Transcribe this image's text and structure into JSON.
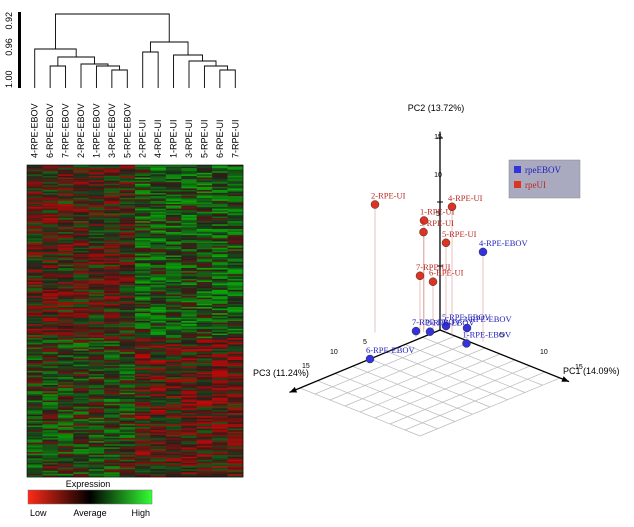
{
  "chart_data": [
    {
      "type": "heatmap",
      "title": "",
      "scale_ticks": [
        "0.92",
        "0.96",
        "1.00"
      ],
      "columns": [
        "4-RPE-EBOV",
        "6-RPE-EBOV",
        "7-RPE-EBOV",
        "2-RPE-EBOV",
        "1-RPE-EBOV",
        "3-RPE-EBOV",
        "5-RPE-EBOV",
        "2-RPE-UI",
        "4-RPE-UI",
        "1-RPE-UI",
        "3-RPE-UI",
        "5-RPE-UI",
        "6-RPE-UI",
        "7-RPE-UI"
      ],
      "column_groups": [
        "EBOV",
        "EBOV",
        "EBOV",
        "EBOV",
        "EBOV",
        "EBOV",
        "EBOV",
        "UI",
        "UI",
        "UI",
        "UI",
        "UI",
        "UI",
        "UI"
      ],
      "row_count": 200,
      "legend": {
        "title": "Expression",
        "low_label": "Low",
        "mid_label": "Average",
        "high_label": "High",
        "low_color": "#ff2a18",
        "mid_color": "#000000",
        "high_color": "#33ff33"
      }
    },
    {
      "type": "scatter",
      "title": "",
      "axes": {
        "x_label": "PC1 (14.09%)",
        "y_label": "PC2 (13.72%)",
        "z_label": "PC3 (11.24%)",
        "pc2_ticks": [
          "15",
          "10",
          "5"
        ],
        "pc1_ticks": [
          "5",
          "10",
          "15"
        ],
        "pc3_ticks": [
          "5",
          "10",
          "15"
        ]
      },
      "legend": [
        {
          "label": "rpeEBOV",
          "color": "#3333dd"
        },
        {
          "label": "rpeUI",
          "color": "#dd3322"
        }
      ],
      "points": [
        {
          "label": "4-RPE-UI",
          "group": "rpeUI",
          "pc1": 2.0,
          "pc2": 10.0,
          "pc3": 0.0
        },
        {
          "label": "2-RPE-UI",
          "group": "rpeUI",
          "pc1": -5.0,
          "pc2": 10.0,
          "pc3": 5.0
        },
        {
          "label": "1-RPE-UI",
          "group": "rpeUI",
          "pc1": -1.5,
          "pc2": 8.5,
          "pc3": 1.0
        },
        {
          "label": "3-RPE-UI",
          "group": "rpeUI",
          "pc1": -1.0,
          "pc2": 7.8,
          "pc3": 1.5
        },
        {
          "label": "5-RPE-UI",
          "group": "rpeUI",
          "pc1": 1.0,
          "pc2": 7.0,
          "pc3": 0.0
        },
        {
          "label": "7-RPE-UI",
          "group": "rpeUI",
          "pc1": -1.0,
          "pc2": 4.5,
          "pc3": 2.0
        },
        {
          "label": "6-RPE-UI",
          "group": "rpeUI",
          "pc1": 0.0,
          "pc2": 4.0,
          "pc3": 1.0
        },
        {
          "label": "4-RPE-EBOV",
          "group": "rpeEBOV",
          "pc1": 6.0,
          "pc2": 7.0,
          "pc3": -1.0
        },
        {
          "label": "5-RPE-EBOV",
          "group": "rpeEBOV",
          "pc1": 1.0,
          "pc2": 0.5,
          "pc3": 0.0
        },
        {
          "label": "2-RPE-EBOV",
          "group": "rpeEBOV",
          "pc1": -0.5,
          "pc2": 0.0,
          "pc3": 1.0
        },
        {
          "label": "7-RPE-EBOV",
          "group": "rpeEBOV",
          "pc1": -0.5,
          "pc2": 0.5,
          "pc3": 3.0
        },
        {
          "label": "3-RPE-EBOV",
          "group": "rpeEBOV",
          "pc1": 4.5,
          "pc2": 1.0,
          "pc3": 0.0
        },
        {
          "label": "1-RPE-EBOV",
          "group": "rpeEBOV",
          "pc1": 5.0,
          "pc2": 0.0,
          "pc3": 0.5
        },
        {
          "label": "6-RPE-EBOV",
          "group": "rpeEBOV",
          "pc1": 0.0,
          "pc2": 0.0,
          "pc3": 10.0
        }
      ]
    }
  ]
}
